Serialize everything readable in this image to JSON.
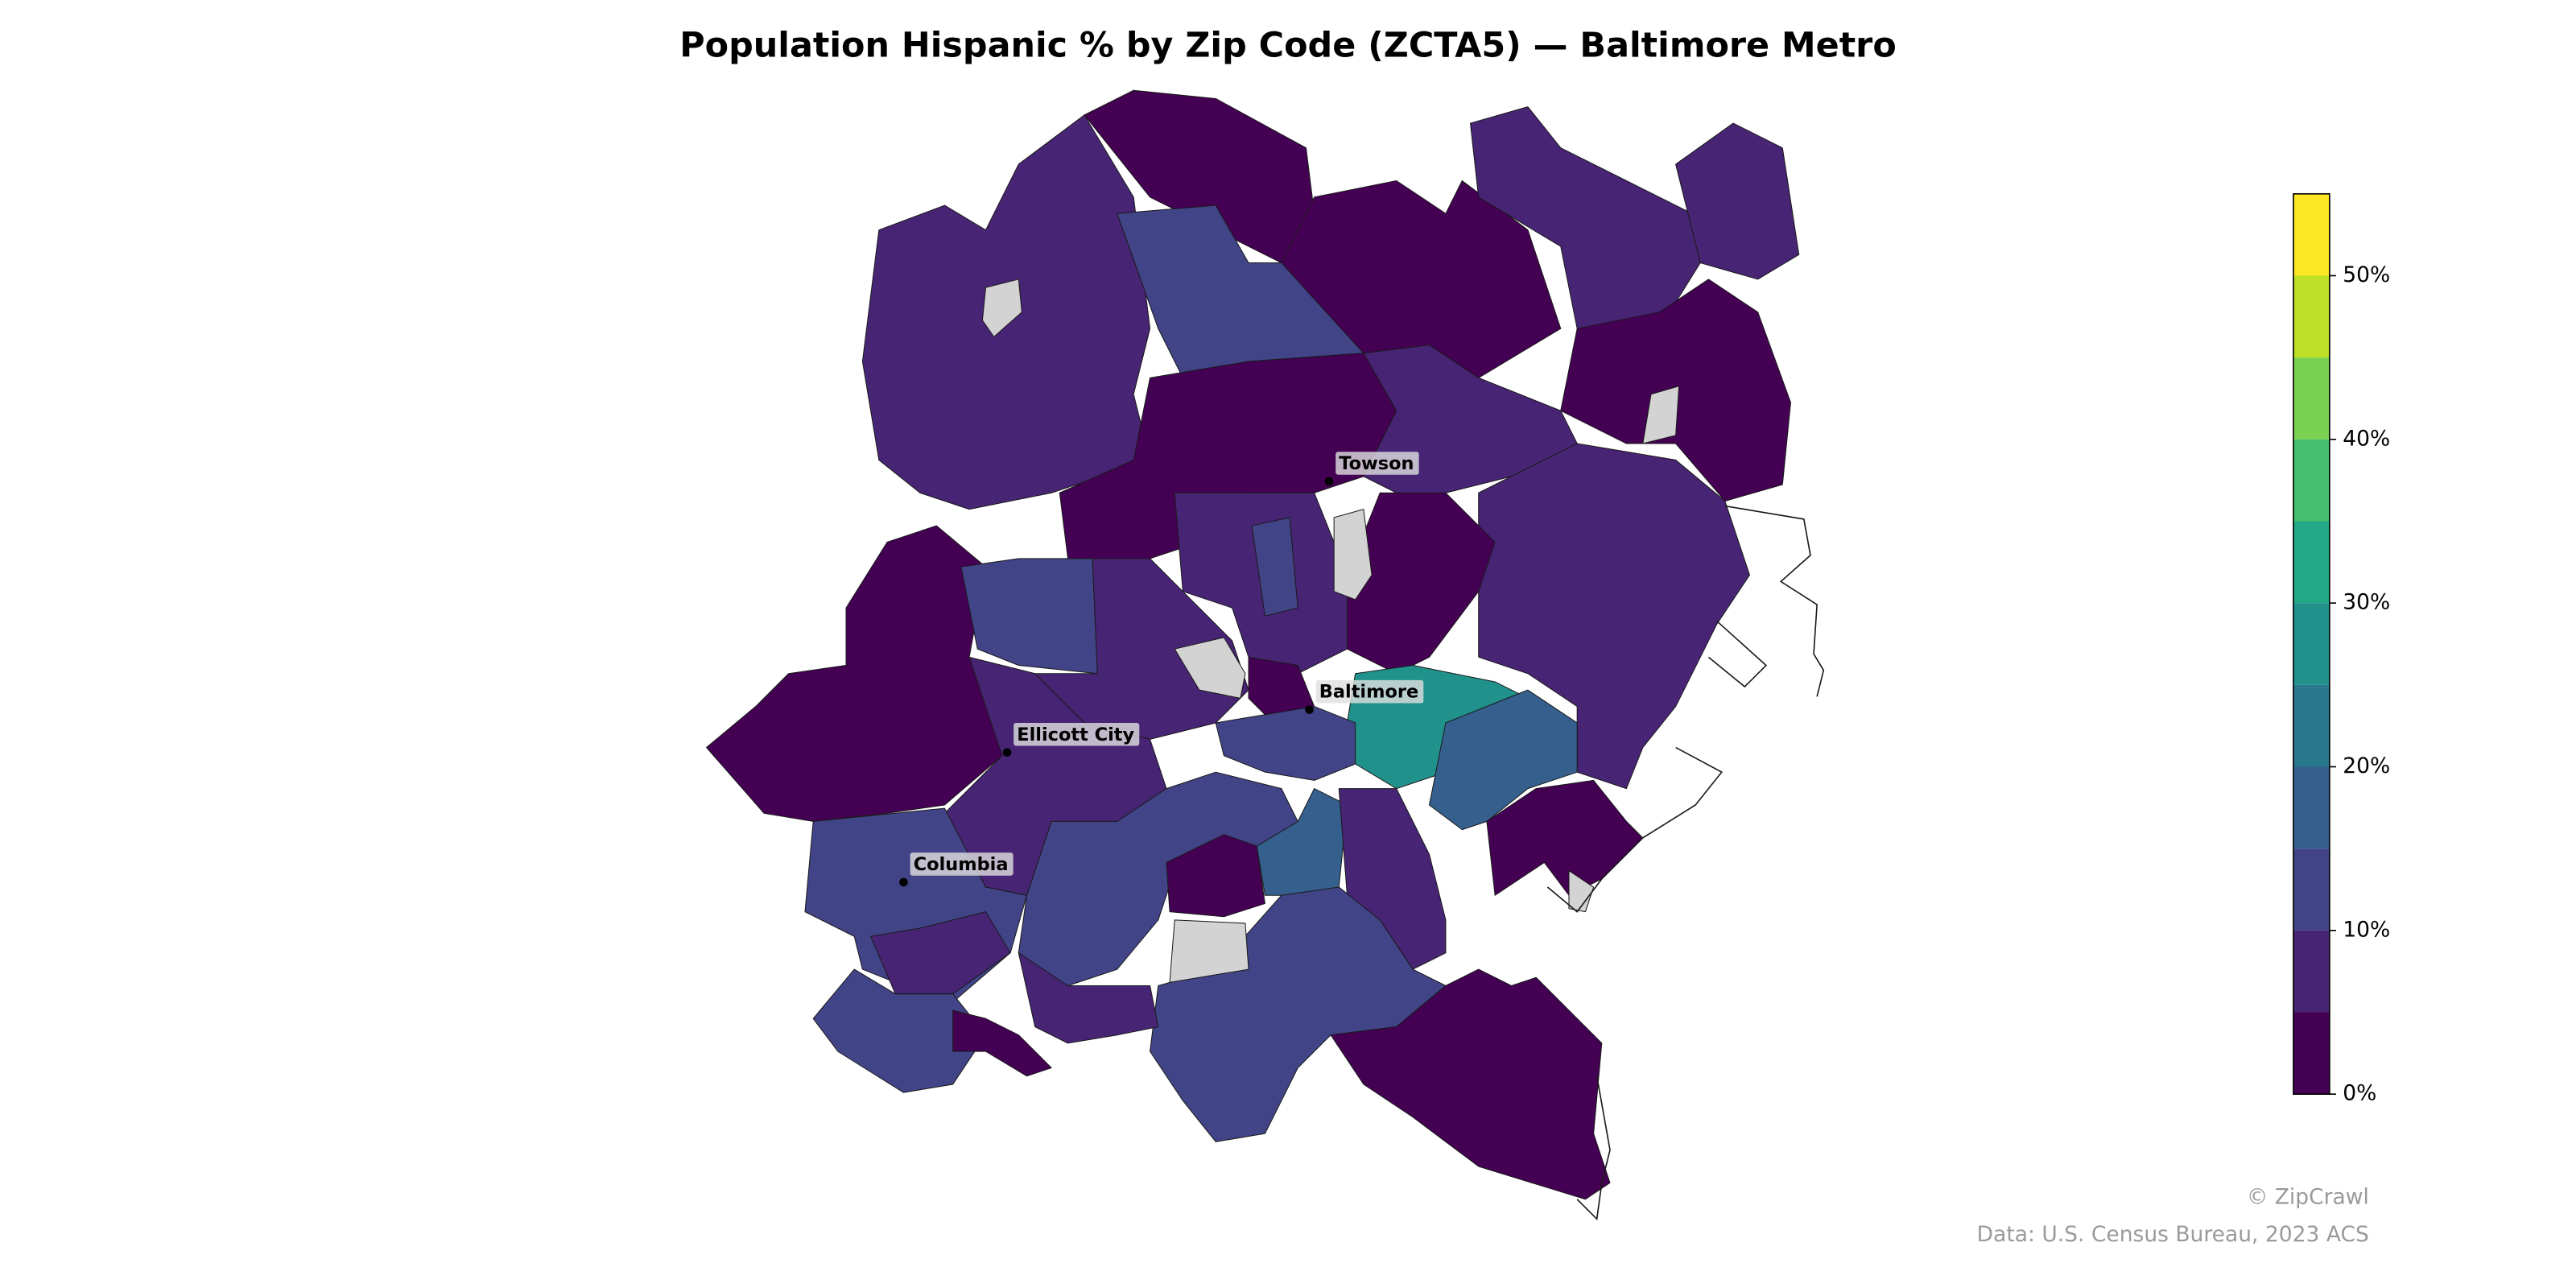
{
  "chart_data": {
    "type": "choropleth",
    "title": "Population Hispanic % by Zip Code (ZCTA5) — Baltimore Metro",
    "values": [
      3,
      8,
      2,
      12,
      3,
      7,
      7,
      3,
      2,
      8,
      7,
      2,
      12,
      8,
      7,
      28,
      17,
      2,
      8,
      13,
      8,
      12,
      12,
      2,
      17,
      8,
      12,
      8,
      2,
      3,
      12,
      2,
      11,
      null,
      null,
      null,
      null,
      null,
      null
    ],
    "missing_color": "#d3d3d3",
    "cities": [
      "Towson",
      "Baltimore",
      "Ellicott City",
      "Columbia"
    ],
    "colorbar": {
      "lim": [
        0,
        55
      ],
      "ticks": [
        {
          "value": 0,
          "label": "0%"
        },
        {
          "value": 10,
          "label": "10%"
        },
        {
          "value": 20,
          "label": "20%"
        },
        {
          "value": 30,
          "label": "30%"
        },
        {
          "value": 40,
          "label": "40%"
        },
        {
          "value": 50,
          "label": "50%"
        }
      ],
      "colors": [
        "#440154",
        "#482475",
        "#414487",
        "#355f8d",
        "#2a788e",
        "#21918c",
        "#22a884",
        "#44bf70",
        "#7ad151",
        "#bddf26",
        "#fde725"
      ]
    }
  },
  "credits": {
    "brand": "© ZipCrawl",
    "source": "Data: U.S. Census Bureau, 2023 ACS"
  }
}
